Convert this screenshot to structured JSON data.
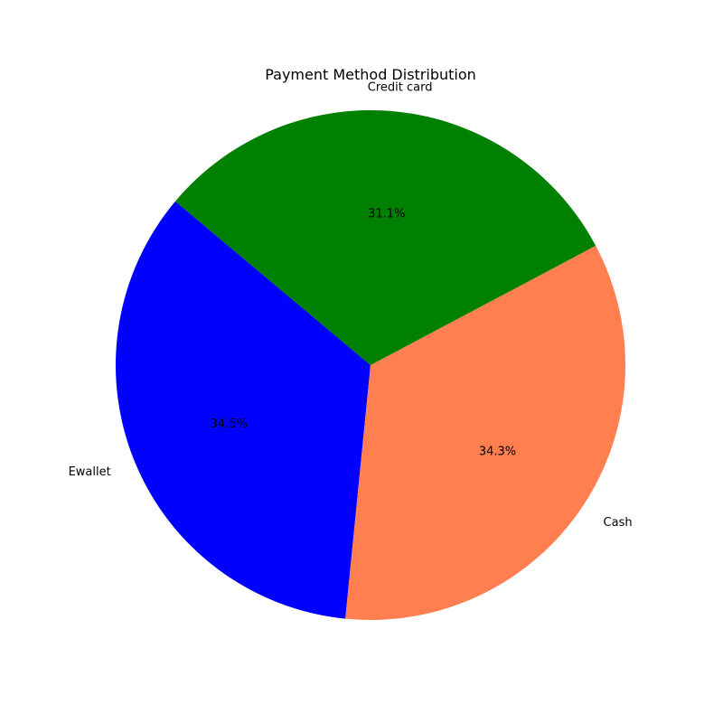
{
  "chart_data": {
    "type": "pie",
    "title": "Payment Method Distribution",
    "categories": [
      "Ewallet",
      "Cash",
      "Credit card"
    ],
    "values": [
      34.5,
      34.3,
      31.1
    ],
    "percent_labels": [
      "34.5%",
      "34.3%",
      "31.1%"
    ],
    "colors": [
      "#0000ff",
      "#ff7f50",
      "#008000"
    ],
    "legend": "none"
  }
}
